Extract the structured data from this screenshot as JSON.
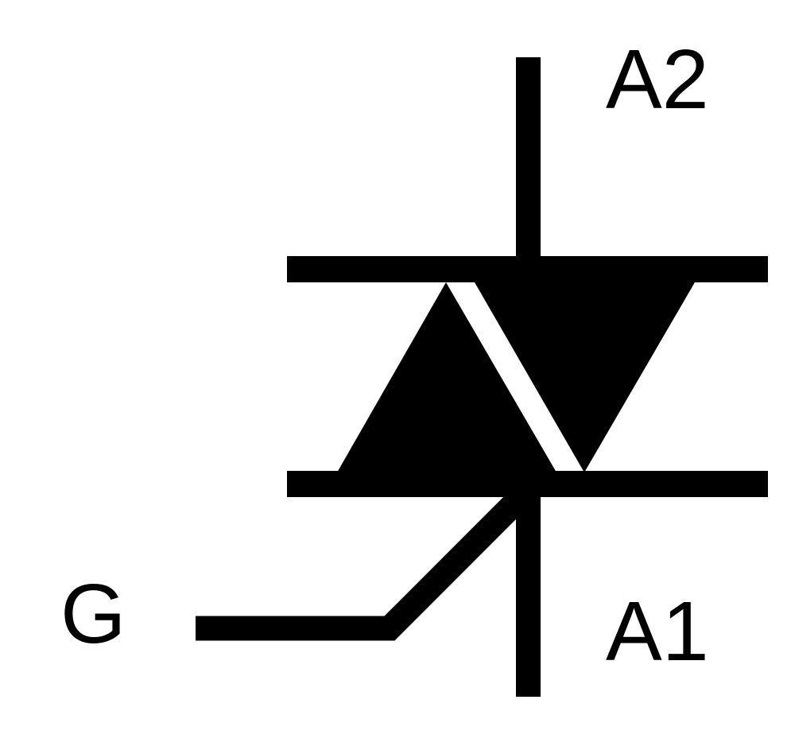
{
  "diagram": {
    "component": "triac",
    "colors": {
      "stroke": "#000000",
      "background": "#ffffff"
    },
    "terminals": {
      "a2": "A2",
      "a1": "A1",
      "gate": "G"
    }
  }
}
